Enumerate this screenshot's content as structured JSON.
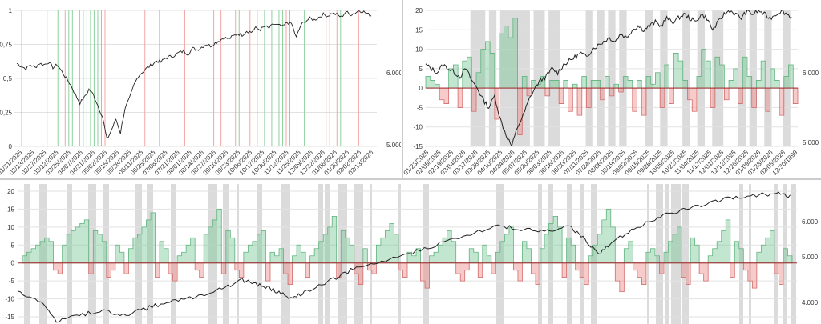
{
  "colors": {
    "price_line": "#222222",
    "green_band": "#8fd19e",
    "red_band": "#f4a6a6",
    "green_fill": "rgba(120,200,150,0.45)",
    "green_stroke": "#5fb37d",
    "red_fill": "rgba(240,140,140,0.45)",
    "red_stroke": "#d36b6b",
    "grid": "#e2e2e2",
    "gray_band": "rgba(170,170,170,0.42)",
    "zero_line": "#9e2b2b"
  },
  "chart_data": [
    {
      "id": "top-left",
      "type": "line",
      "y_left_ticks": [
        "0",
        "0,25",
        "0,5",
        "0,75",
        "1"
      ],
      "y_left_range": [
        0,
        1
      ],
      "y_right_ticks": [
        "5.000",
        "6.000"
      ],
      "x_tick_labels": [
        "01/31/2025",
        "02/13/2025",
        "02/27/2025",
        "03/12/2025",
        "03/25/2025",
        "04/07/2025",
        "04/21/2025",
        "05/02/2025",
        "05/15/2025",
        "05/28/2025",
        "06/11/2025",
        "06/25/2025",
        "07/08/2025",
        "07/21/2025",
        "08/01/2025",
        "08/14/2025",
        "08/27/2025",
        "09/10/2025",
        "09/23/2025",
        "10/06/2025",
        "10/17/2025",
        "10/30/2025",
        "11/12/2025",
        "11/25/2025",
        "12/09/2025",
        "12/22/2025",
        "01/06/2026",
        "01/20/2026",
        "02/02/2026",
        "02/13/2026"
      ],
      "series": [
        {
          "values": [
            0.61,
            0.59,
            0.57,
            0.6,
            0.58,
            0.61,
            0.6,
            0.62,
            0.58,
            0.6,
            0.55,
            0.5,
            0.45,
            0.38,
            0.32,
            0.36,
            0.42,
            0.38,
            0.3,
            0.22,
            0.05,
            0.12,
            0.2,
            0.1,
            0.28,
            0.35,
            0.45,
            0.52,
            0.55,
            0.58,
            0.6,
            0.63,
            0.62,
            0.65,
            0.66,
            0.67,
            0.69,
            0.7,
            0.68,
            0.72,
            0.71,
            0.73,
            0.75,
            0.74,
            0.76,
            0.78,
            0.8,
            0.79,
            0.81,
            0.83,
            0.82,
            0.85,
            0.84,
            0.87,
            0.86,
            0.88,
            0.87,
            0.9,
            0.89,
            0.88,
            0.91,
            0.9,
            0.8,
            0.89,
            0.92,
            0.94,
            0.93,
            0.95,
            0.97,
            0.96,
            0.98,
            0.97,
            0.95,
            0.99,
            0.97,
            0.98,
            1.0,
            0.99,
            0.97,
            0.96
          ]
        }
      ],
      "red_band_positions": [
        0.02,
        0.14,
        0.25,
        0.36,
        0.4,
        0.47,
        0.55,
        0.57,
        0.61,
        0.65,
        0.75,
        0.86,
        0.89,
        0.95
      ],
      "green_band_positions": [
        0.09,
        0.12,
        0.15,
        0.16,
        0.18,
        0.19,
        0.2,
        0.21,
        0.22,
        0.23,
        0.24,
        0.62,
        0.67,
        0.69,
        0.71,
        0.73,
        0.74,
        0.76,
        0.78,
        0.8,
        0.87,
        0.9
      ]
    },
    {
      "id": "top-right",
      "type": "area",
      "y_left_ticks": [
        "-15",
        "-10",
        "-5",
        "0",
        "5",
        "10",
        "15",
        "20"
      ],
      "y_left_range": [
        -15,
        20
      ],
      "y_right_ticks": [
        "5.000",
        "6.000"
      ],
      "x_tick_labels": [
        "01/23/2025",
        "02/05/2025",
        "02/19/2025",
        "03/04/2025",
        "03/17/2025",
        "03/28/2025",
        "04/10/2025",
        "04/24/2025",
        "05/07/2025",
        "05/20/2025",
        "06/03/2025",
        "06/16/2025",
        "06/30/2025",
        "07/11/2025",
        "07/24/2025",
        "08/06/2025",
        "08/19/2025",
        "09/02/2025",
        "09/15/2025",
        "09/26/2025",
        "10/09/2025",
        "10/22/2025",
        "11/04/2025",
        "11/17/2025",
        "12/01/2025",
        "12/12/2025",
        "12/26/2025",
        "01/09/2026",
        "01/23/2026",
        "02/05/2026",
        "12/30/1899"
      ],
      "bar_values": [
        3,
        2,
        1,
        -3,
        -4,
        5,
        6,
        -5,
        7,
        8,
        -6,
        4,
        10,
        12,
        9,
        -8,
        14,
        16,
        13,
        18,
        -12,
        3,
        -2,
        2,
        1,
        3,
        -2,
        2,
        2,
        -4,
        2,
        -6,
        1,
        -7,
        3,
        -5,
        2,
        2,
        -3,
        3,
        -2,
        1,
        -1,
        3,
        2,
        -6,
        2,
        -7,
        3,
        1,
        4,
        -5,
        6,
        -4,
        9,
        7,
        2,
        -3,
        -6,
        3,
        10,
        7,
        -5,
        8,
        6,
        -3,
        2,
        5,
        -4,
        8,
        3,
        -5,
        2,
        7,
        -6,
        5,
        2,
        -7,
        3,
        6,
        -4
      ],
      "price_values": [
        6,
        5,
        4,
        6,
        5,
        4,
        3,
        5,
        2,
        0,
        -3,
        -5,
        -2,
        -8,
        -12,
        -15,
        -10,
        -7,
        -3,
        0,
        2,
        3,
        5,
        4,
        6,
        7,
        8,
        9,
        8,
        10,
        11,
        12,
        13,
        12,
        14,
        13,
        15,
        16,
        15,
        16,
        17,
        16,
        18,
        17,
        18,
        19,
        18,
        17,
        19,
        18,
        15,
        17,
        19,
        20,
        19,
        18,
        20,
        19,
        20,
        19,
        18,
        19,
        20,
        19,
        18
      ]
    },
    {
      "id": "bottom",
      "type": "area",
      "y_left_ticks": [
        "-15",
        "-10",
        "-5",
        "0",
        "5",
        "10",
        "15",
        "20"
      ],
      "y_left_range": [
        -17,
        22
      ],
      "y_right_ticks": [
        "4.000",
        "5.000",
        "6.000"
      ],
      "bar_values": [
        2,
        3,
        4,
        5,
        6,
        7,
        6,
        -2,
        -3,
        5,
        8,
        9,
        10,
        11,
        12,
        -3,
        9,
        8,
        6,
        -4,
        -2,
        5,
        3,
        -3,
        4,
        7,
        8,
        10,
        12,
        14,
        -4,
        6,
        4,
        -3,
        -5,
        2,
        3,
        5,
        7,
        -2,
        -4,
        8,
        10,
        12,
        15,
        -3,
        9,
        7,
        -2,
        -4,
        3,
        5,
        6,
        8,
        9,
        -5,
        3,
        2,
        4,
        -3,
        -6,
        2,
        5,
        3,
        -4,
        2,
        4,
        6,
        8,
        10,
        13,
        -4,
        9,
        7,
        5,
        -3,
        -6,
        4,
        -2,
        -3,
        5,
        7,
        9,
        11,
        8,
        -2,
        -4,
        3,
        2,
        4,
        -5,
        -7,
        2,
        3,
        5,
        7,
        9,
        6,
        -3,
        -5,
        -2,
        4,
        3,
        -4,
        5,
        2,
        -3,
        3,
        6,
        8,
        10,
        -2,
        -5,
        6,
        4,
        -3,
        -6,
        4,
        8,
        11,
        13,
        10,
        -4,
        7,
        5,
        -2,
        -4,
        -6,
        2,
        5,
        8,
        12,
        15,
        10,
        -5,
        -8,
        4,
        6,
        -2,
        -4,
        -6,
        3,
        4,
        2,
        -3,
        3,
        6,
        8,
        10,
        -4,
        -6,
        7,
        5,
        -3,
        -5,
        2,
        4,
        6,
        9,
        12,
        -4,
        6,
        4,
        -2,
        -5,
        -7,
        3,
        5,
        7,
        9,
        -3,
        -6,
        4,
        2
      ]
    }
  ]
}
